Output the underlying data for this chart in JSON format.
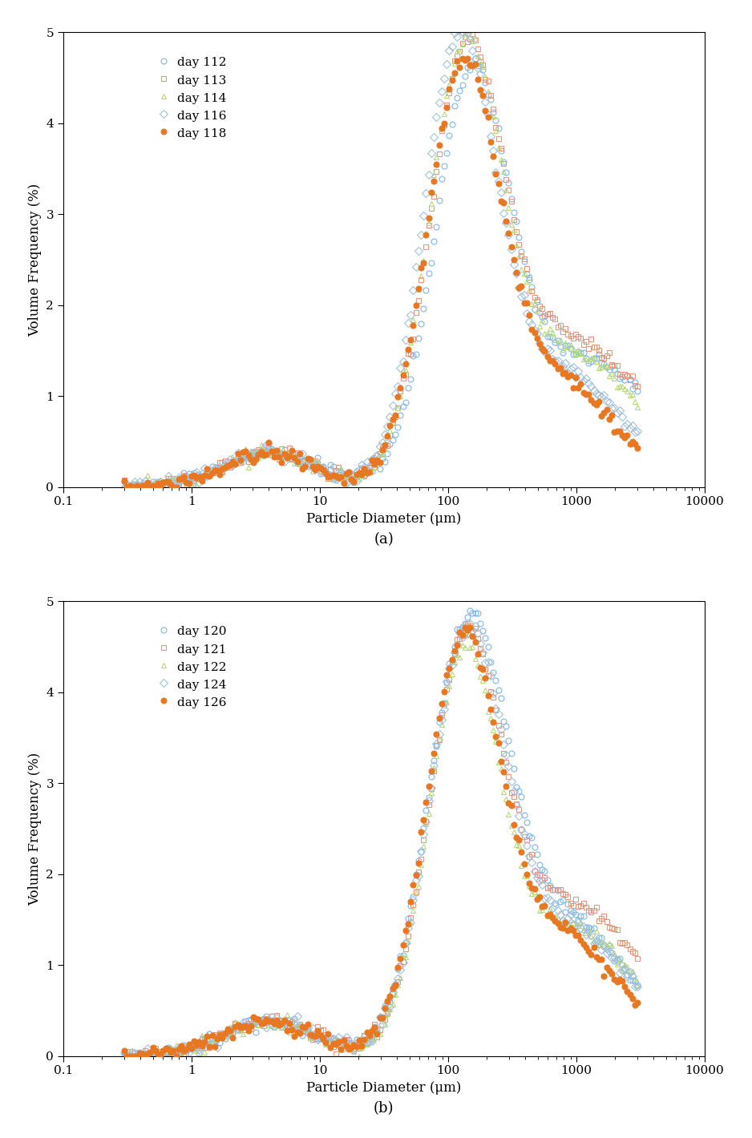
{
  "panel_a": {
    "xlabel": "Particle Diameter (μm)",
    "ylabel": "Volume Frequency (%)",
    "label": "(a)",
    "series": [
      {
        "day": "day 112",
        "marker": "o",
        "color": "#7EB6E8",
        "facecolor": "none",
        "zorder": 2
      },
      {
        "day": "day 113",
        "marker": "s",
        "color": "#E8967E",
        "facecolor": "none",
        "zorder": 2
      },
      {
        "day": "day 114",
        "marker": "^",
        "color": "#B8D87A",
        "facecolor": "none",
        "zorder": 2
      },
      {
        "day": "day 116",
        "marker": "D",
        "color": "#A0C0D8",
        "facecolor": "none",
        "zorder": 2
      },
      {
        "day": "day 118",
        "marker": "o",
        "color": "#E87722",
        "facecolor": "#E87722",
        "zorder": 3
      }
    ]
  },
  "panel_b": {
    "xlabel": "Particle Diameter (μm)",
    "ylabel": "Volume Frequency (%)",
    "label": "(b)",
    "series": [
      {
        "day": "day 120",
        "marker": "o",
        "color": "#7EB6E8",
        "facecolor": "none",
        "zorder": 2
      },
      {
        "day": "day 121",
        "marker": "s",
        "color": "#E8967E",
        "facecolor": "none",
        "zorder": 2
      },
      {
        "day": "day 122",
        "marker": "^",
        "color": "#B8D87A",
        "facecolor": "none",
        "zorder": 2
      },
      {
        "day": "day 124",
        "marker": "D",
        "color": "#A0C0D8",
        "facecolor": "none",
        "zorder": 2
      },
      {
        "day": "day 126",
        "marker": "o",
        "color": "#E87722",
        "facecolor": "#E87722",
        "zorder": 3
      }
    ]
  },
  "xlim": [
    0.1,
    10000
  ],
  "ylim": [
    0,
    5
  ],
  "yticks": [
    0,
    1,
    2,
    3,
    4,
    5
  ],
  "markersize": 5
}
